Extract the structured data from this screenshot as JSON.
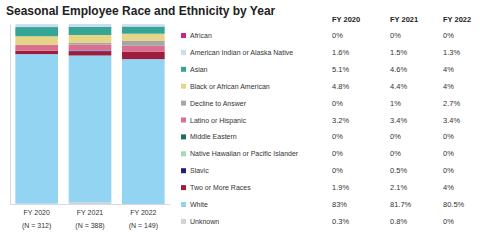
{
  "chart_data": {
    "type": "bar",
    "title": "Seasonal Employee Race and Ethnicity by Year",
    "categories": [
      "FY 2020",
      "FY 2021",
      "FY 2022"
    ],
    "category_notes": [
      "(N = 312)",
      "(N = 388)",
      "(N = 149)"
    ],
    "stacked": true,
    "legend": "right",
    "tick_labels": "x",
    "ylim": [
      0,
      100
    ],
    "series": [
      {
        "name": "African",
        "color": "#c2298a",
        "values": [
          0,
          0,
          0
        ],
        "value_labels": [
          "0%",
          "0%",
          "0%"
        ]
      },
      {
        "name": "American Indian or Alaska Native",
        "color": "#c9dcf2",
        "values": [
          1.6,
          1.5,
          1.3
        ],
        "value_labels": [
          "1.6%",
          "1.5%",
          "1.3%"
        ]
      },
      {
        "name": "Asian",
        "color": "#35a596",
        "values": [
          5.1,
          4.6,
          4
        ],
        "value_labels": [
          "5.1%",
          "4.6%",
          "4%"
        ]
      },
      {
        "name": "Black or African American",
        "color": "#e6d487",
        "values": [
          4.8,
          4.4,
          4
        ],
        "value_labels": [
          "4.8%",
          "4.4%",
          "4%"
        ]
      },
      {
        "name": "Decline to Answer",
        "color": "#a6a6a6",
        "values": [
          0,
          1,
          2.7
        ],
        "value_labels": [
          "0%",
          "1%",
          "2.7%"
        ]
      },
      {
        "name": "Latino or Hispanic",
        "color": "#d9708f",
        "values": [
          3.2,
          3.4,
          3.4
        ],
        "value_labels": [
          "3.2%",
          "3.4%",
          "3.4%"
        ]
      },
      {
        "name": "Middle Eastern",
        "color": "#1f6f5c",
        "values": [
          0,
          0,
          0
        ],
        "value_labels": [
          "0%",
          "0%",
          "0%"
        ]
      },
      {
        "name": "Native Hawaiian or Pacific Islander",
        "color": "#a3dcb4",
        "values": [
          0,
          0,
          0
        ],
        "value_labels": [
          "0%",
          "0%",
          "0%"
        ]
      },
      {
        "name": "Slavic",
        "color": "#1f1f7a",
        "values": [
          0,
          0.5,
          0
        ],
        "value_labels": [
          "0%",
          "0.5%",
          "0%"
        ]
      },
      {
        "name": "Two or More Races",
        "color": "#9e1c3c",
        "values": [
          1.9,
          2.1,
          4
        ],
        "value_labels": [
          "1.9%",
          "2.1%",
          "4%"
        ]
      },
      {
        "name": "White",
        "color": "#92d4f2",
        "values": [
          83,
          81.7,
          80.5
        ],
        "value_labels": [
          "83%",
          "81.7%",
          "80.5%"
        ]
      },
      {
        "name": "Unknown",
        "color": "#d3d3d3",
        "values": [
          0.3,
          0.8,
          0
        ],
        "value_labels": [
          "0.3%",
          "0.8%",
          "0%"
        ]
      }
    ]
  }
}
